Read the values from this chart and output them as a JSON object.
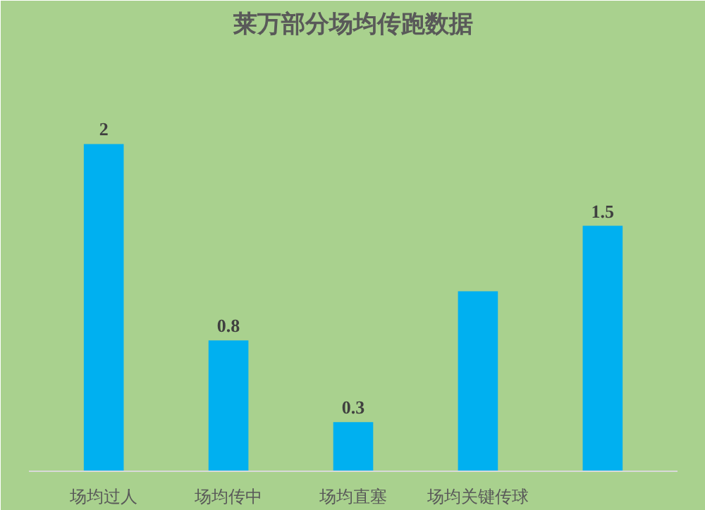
{
  "chart_data": {
    "type": "bar",
    "title": "莱万部分场均传跑数据",
    "categories": [
      "场均过人",
      "场均传中",
      "场均直塞",
      "场均关键传球",
      null
    ],
    "values": [
      2,
      0.8,
      0.3,
      1.1,
      1.5
    ],
    "value_labels": [
      "2",
      "0.8",
      "0.3",
      null,
      "1.5"
    ],
    "color": "#00b0f0",
    "grid": false
  }
}
